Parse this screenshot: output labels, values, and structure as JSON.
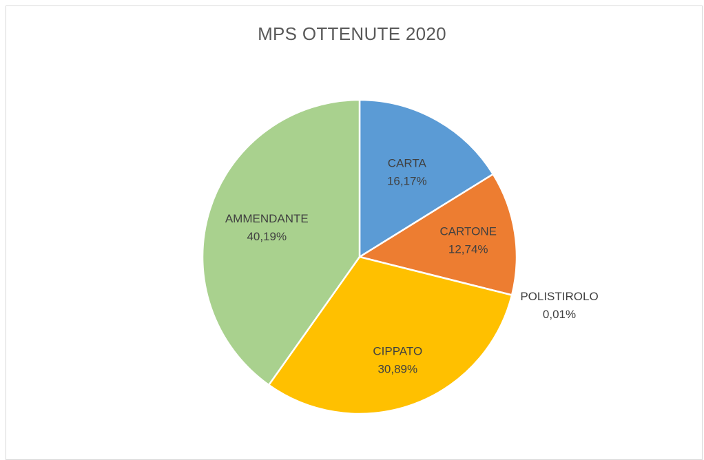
{
  "chart_data": {
    "type": "pie",
    "title": "MPS OTTENUTE 2020",
    "categories": [
      "CARTA",
      "CARTONE",
      "POLISTIROLO",
      "CIPPATO",
      "AMMENDANTE"
    ],
    "values": [
      16.17,
      12.74,
      0.01,
      30.89,
      40.19
    ],
    "value_labels": [
      "16,17%",
      "12,74%",
      "0,01%",
      "30,89%",
      "40,19%"
    ],
    "colors": [
      "#5b9bd5",
      "#ed7d31",
      "#a5a5a5",
      "#ffc000",
      "#a9d18e"
    ],
    "start_angle_deg": 0,
    "direction": "clockwise",
    "legend": "none",
    "data_labels": "category-and-percent"
  }
}
